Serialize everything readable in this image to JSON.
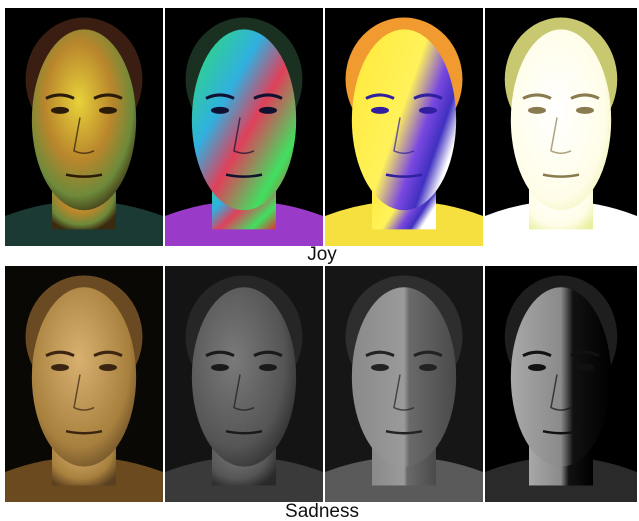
{
  "rows": [
    {
      "caption": "Joy"
    },
    {
      "caption": "Sadness"
    }
  ]
}
